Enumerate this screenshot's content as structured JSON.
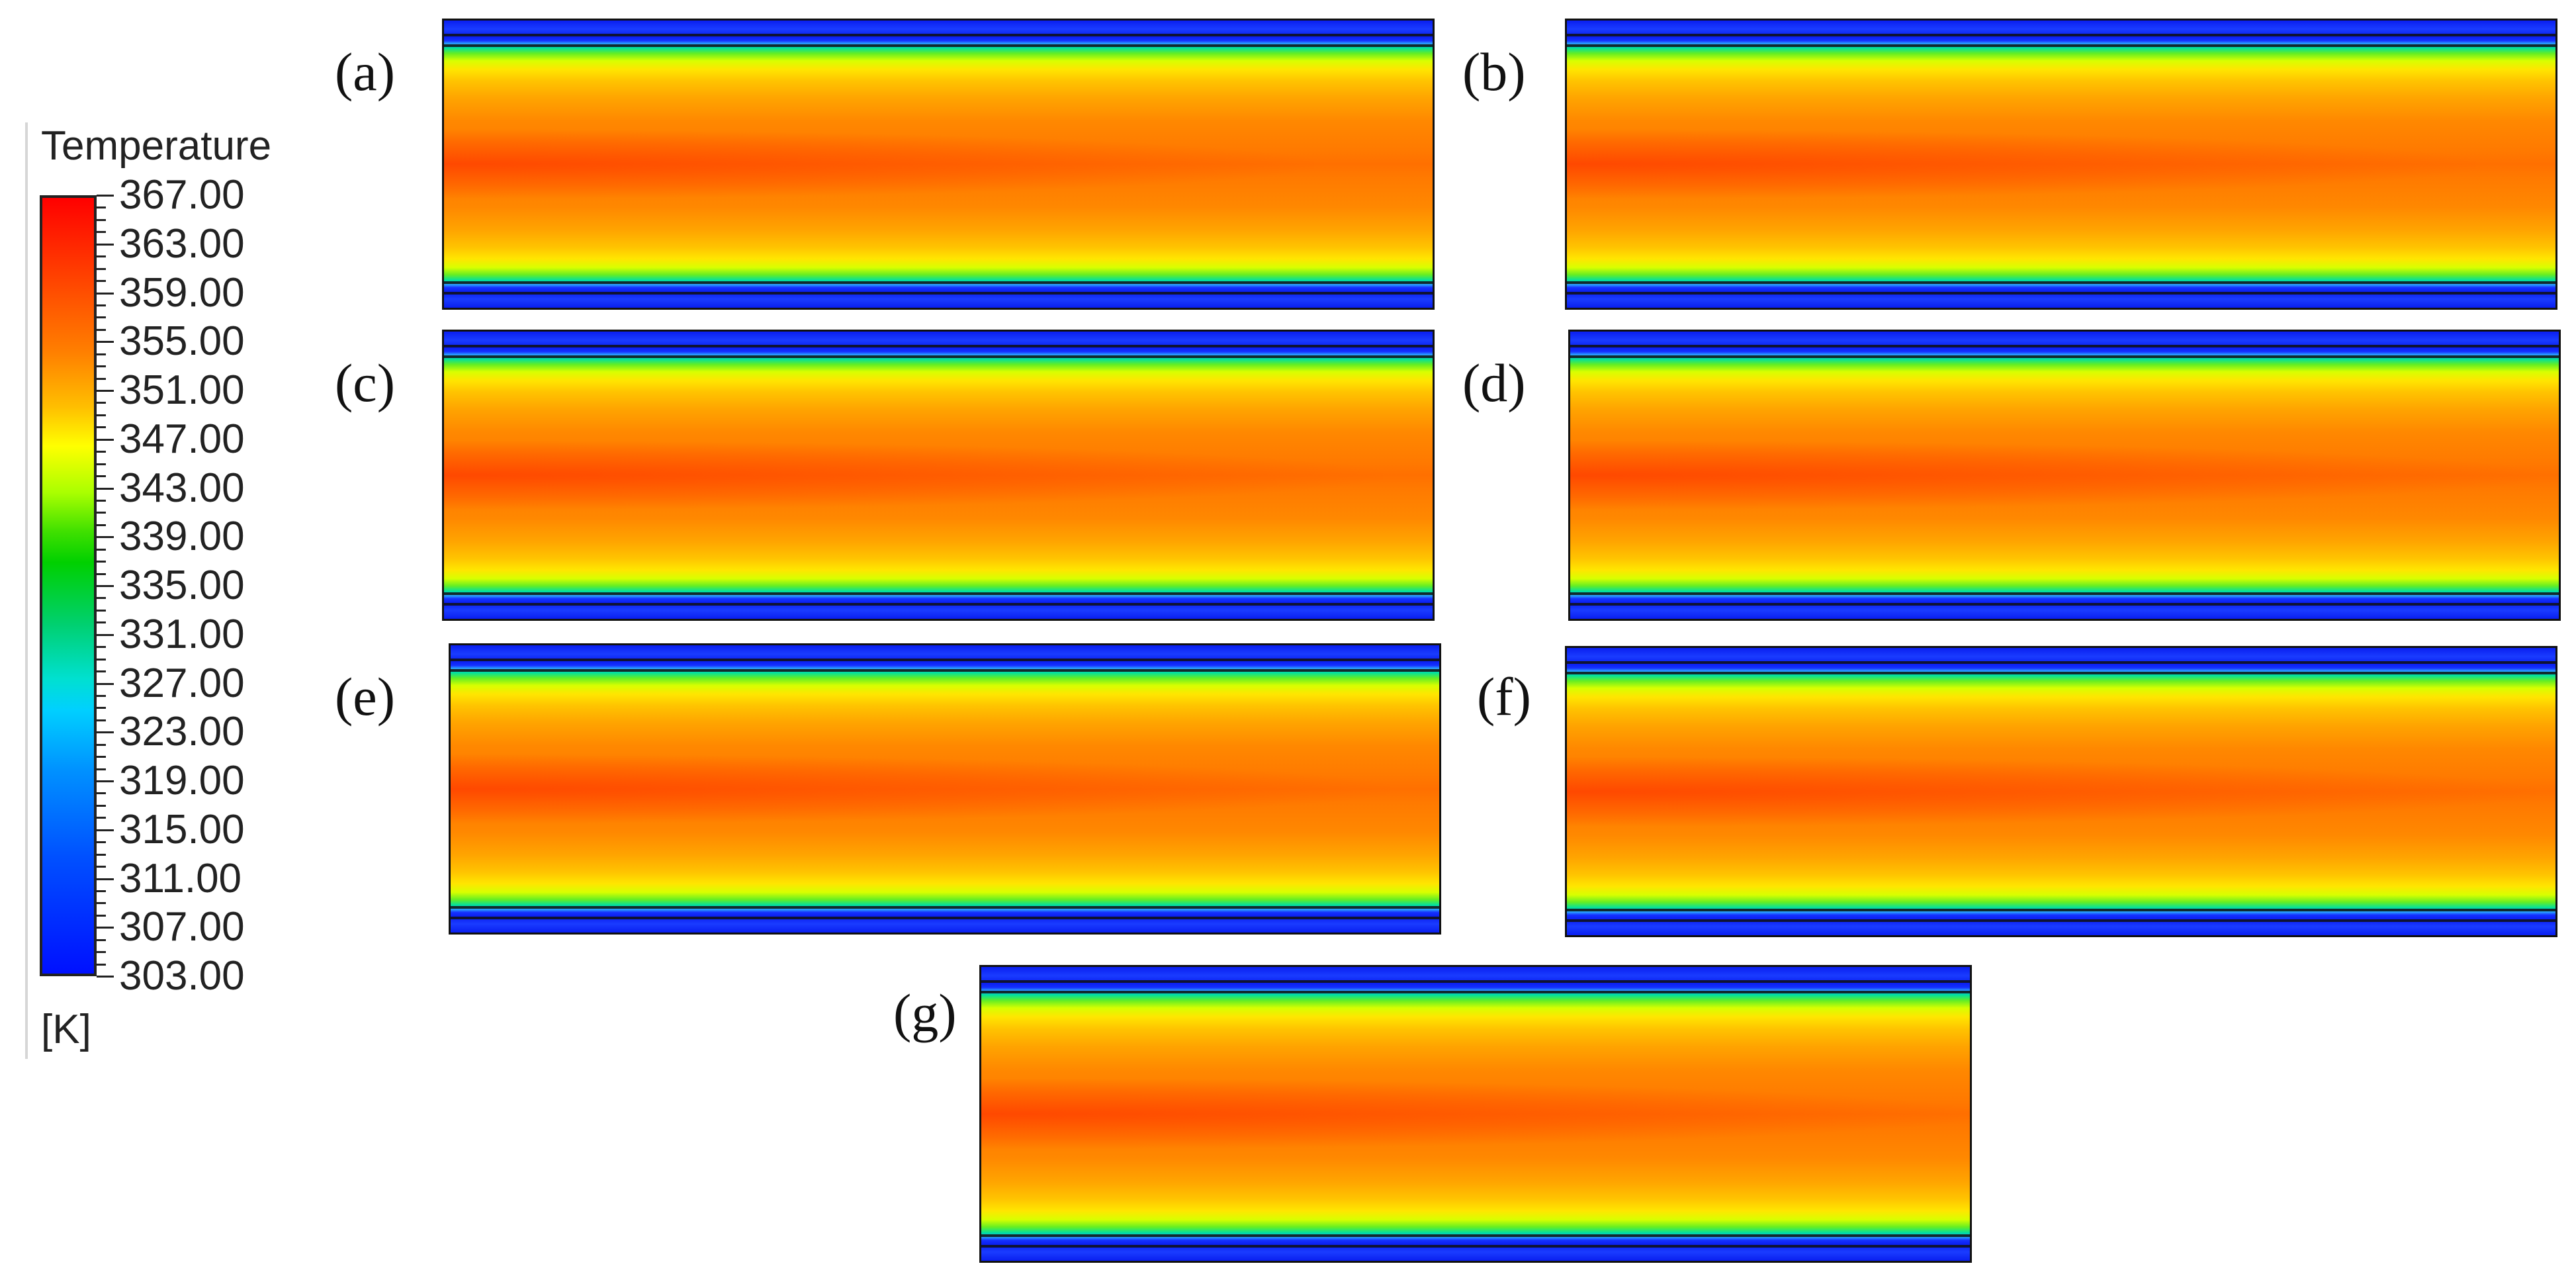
{
  "legend": {
    "title": "Temperature",
    "unit": "[K]",
    "labels": [
      "367.00",
      "363.00",
      "359.00",
      "355.00",
      "351.00",
      "347.00",
      "343.00",
      "339.00",
      "335.00",
      "331.00",
      "327.00",
      "323.00",
      "319.00",
      "315.00",
      "311.00",
      "307.00",
      "303.00"
    ],
    "max": 367,
    "min": 303
  },
  "panels": [
    {
      "label": "(a)"
    },
    {
      "label": "(b)"
    },
    {
      "label": "(c)"
    },
    {
      "label": "(d)"
    },
    {
      "label": "(e)"
    },
    {
      "label": "(f)"
    },
    {
      "label": "(g)"
    }
  ],
  "colors": {
    "hot": "#ff2000",
    "warm": "#ff8800",
    "mid": "#ffff00",
    "cool": "#00d000",
    "cold": "#0010ff"
  }
}
